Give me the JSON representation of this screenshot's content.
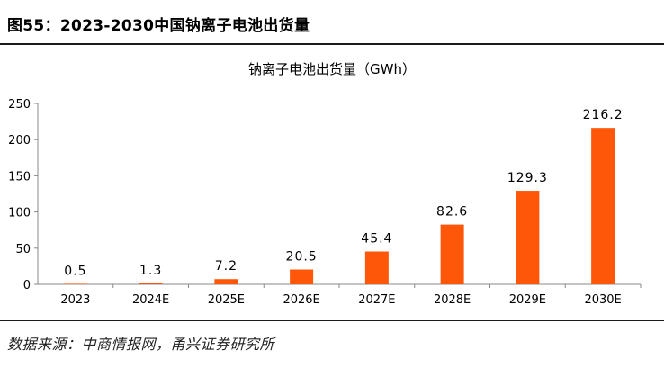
{
  "figure": {
    "title": "图55：2023-2030中国钠离子电池出货量",
    "source": "数据来源：中商情报网，甬兴证券研究所"
  },
  "chart_data": {
    "type": "bar",
    "title": "钠离子电池出货量（GWh）",
    "xlabel": "",
    "ylabel": "",
    "categories": [
      "2023",
      "2024E",
      "2025E",
      "2026E",
      "2027E",
      "2028E",
      "2029E",
      "2030E"
    ],
    "values": [
      0.5,
      1.3,
      7.2,
      20.5,
      45.4,
      82.6,
      129.3,
      216.2
    ],
    "value_labels": [
      "0.5",
      "1.3",
      "7.2",
      "20.5",
      "45.4",
      "82.6",
      "129.3",
      "216.2"
    ],
    "ylim": [
      0,
      250
    ],
    "yticks": [
      "0",
      "50",
      "100",
      "150",
      "200",
      "250"
    ],
    "grid": false,
    "legend": "none",
    "bar_color": "#FF5709"
  }
}
